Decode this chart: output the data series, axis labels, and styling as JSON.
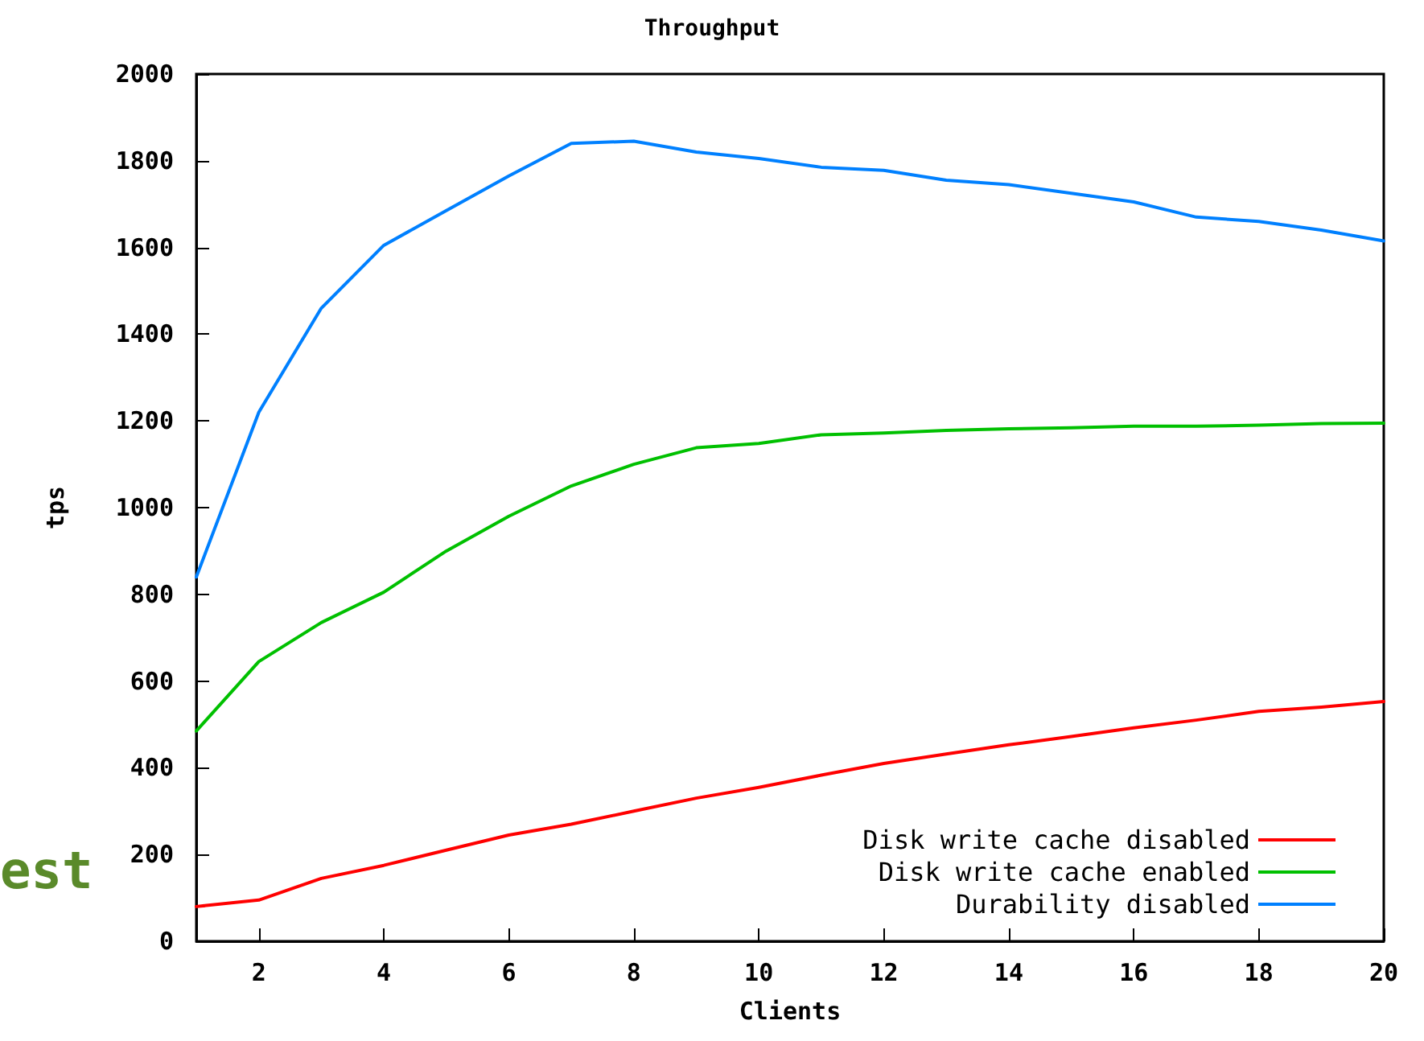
{
  "chart_data": {
    "type": "line",
    "title": "Throughput",
    "xlabel": "Clients",
    "ylabel": "tps",
    "x": [
      1,
      2,
      3,
      4,
      5,
      6,
      7,
      8,
      9,
      10,
      11,
      12,
      13,
      14,
      15,
      16,
      17,
      18,
      19,
      20
    ],
    "series": [
      {
        "name": "Disk write cache disabled",
        "color": "#ff0000",
        "values": [
          80,
          95,
          145,
          175,
          210,
          245,
          270,
          300,
          330,
          355,
          383,
          410,
          432,
          453,
          472,
          492,
          510,
          530,
          540,
          553
        ]
      },
      {
        "name": "Disk write cache enabled",
        "color": "#00c000",
        "values": [
          485,
          645,
          735,
          805,
          900,
          980,
          1050,
          1100,
          1138,
          1148,
          1168,
          1172,
          1178,
          1182,
          1184,
          1188,
          1188,
          1190,
          1194,
          1195
        ]
      },
      {
        "name": "Durability disabled",
        "color": "#0080ff",
        "values": [
          840,
          1220,
          1460,
          1605,
          1685,
          1765,
          1840,
          1845,
          1820,
          1805,
          1785,
          1778,
          1755,
          1745,
          1725,
          1705,
          1670,
          1660,
          1640,
          1615
        ]
      }
    ],
    "xlim": [
      1,
      20
    ],
    "xticks": [
      2,
      4,
      6,
      8,
      10,
      12,
      14,
      16,
      18,
      20
    ],
    "ylim": [
      0,
      2000
    ],
    "yticks": [
      0,
      200,
      400,
      600,
      800,
      1000,
      1200,
      1400,
      1600,
      1800,
      2000
    ],
    "grid": false,
    "legend": "bottom right",
    "marker": "none",
    "line_style": "solid",
    "annotations": [
      "est"
    ]
  }
}
